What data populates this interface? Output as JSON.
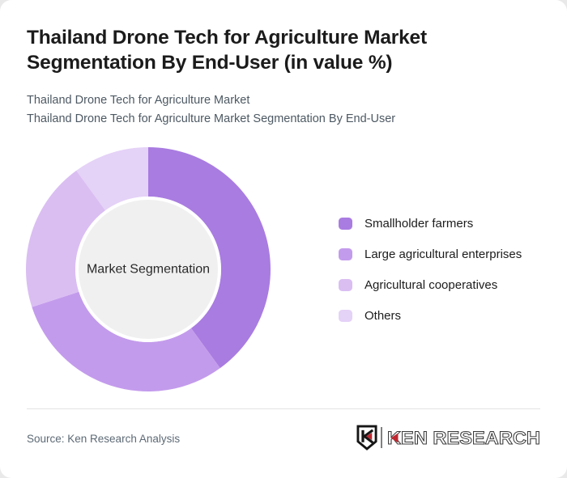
{
  "header": {
    "title": "Thailand Drone Tech for Agriculture Market Segmentation By End-User (in value %)",
    "subtitle_line1": "Thailand Drone Tech for Agriculture Market",
    "subtitle_line2": "Thailand Drone Tech for Agriculture Market Segmentation By End-User"
  },
  "chart_data": {
    "type": "pie",
    "subtype": "donut",
    "title": "Thailand Drone Tech for Agriculture Market Segmentation By End-User (in value %)",
    "center_label": "Market Segmentation",
    "categories": [
      "Smallholder farmers",
      "Large agricultural enterprises",
      "Agricultural cooperatives",
      "Others"
    ],
    "values": [
      40,
      30,
      20,
      10
    ],
    "unit": "value %",
    "colors": [
      "#a97ce1",
      "#c39bec",
      "#dabef2",
      "#e5d2f7"
    ],
    "start_angle_deg": 0,
    "direction": "clockwise",
    "legend_position": "right",
    "inner_circle_color": "#f0f0f0"
  },
  "footer": {
    "source": "Source: Ken Research Analysis",
    "logo_text": "KEN RESEARCH"
  }
}
